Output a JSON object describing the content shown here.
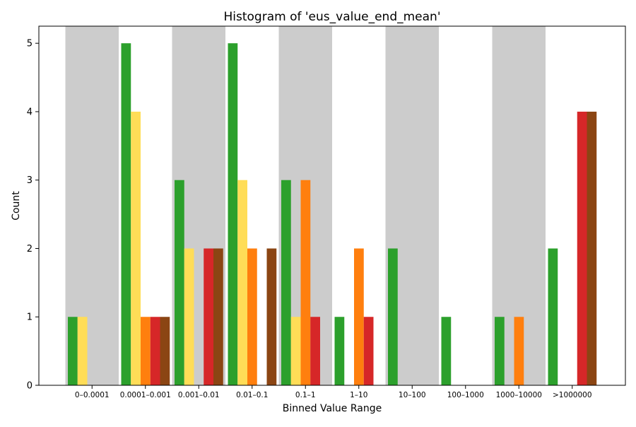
{
  "chart_data": {
    "type": "bar",
    "title": "Histogram of 'eus_value_end_mean'",
    "xlabel": "Binned Value Range",
    "ylabel": "Count",
    "ylim": [
      0,
      5.25
    ],
    "yticks": [
      0,
      1,
      2,
      3,
      4,
      5
    ],
    "categories": [
      "0–0.0001",
      "0.0001–0.001",
      "0.001–0.01",
      "0.01–0.1",
      "0.1–1",
      "1–10",
      "10–100",
      "100–1000",
      "1000–10000",
      ">1000000"
    ],
    "shaded_bins": [
      0,
      2,
      4,
      6,
      8
    ],
    "shade_color": "#cccccc",
    "grid": false,
    "legend": "none",
    "series": [
      {
        "color": "#2ca02c",
        "values": [
          1,
          5,
          3,
          5,
          3,
          1,
          2,
          1,
          1,
          2
        ]
      },
      {
        "color": "#ffdd57",
        "values": [
          1,
          4,
          2,
          3,
          1,
          0,
          0,
          0,
          0,
          0
        ]
      },
      {
        "color": "#ff7f0e",
        "values": [
          0,
          1,
          0,
          2,
          3,
          2,
          0,
          0,
          1,
          0
        ]
      },
      {
        "color": "#d62728",
        "values": [
          0,
          1,
          2,
          0,
          1,
          1,
          0,
          0,
          0,
          4
        ]
      },
      {
        "color": "#8b4513",
        "values": [
          0,
          1,
          2,
          2,
          0,
          0,
          0,
          0,
          0,
          4
        ]
      }
    ]
  }
}
